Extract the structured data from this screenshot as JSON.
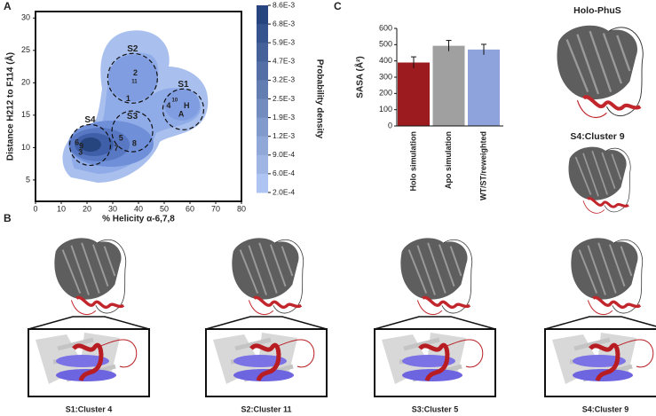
{
  "panel_labels": [
    "A",
    "B",
    "C"
  ],
  "chart_data": [
    {
      "type": "contour",
      "xlabel": "% Helicity α-6,7,8",
      "ylabel": "Distance H212 to F114 (Å)",
      "xlim": [
        0,
        80
      ],
      "xticks": [
        0,
        10,
        20,
        30,
        40,
        50,
        60,
        70,
        80
      ],
      "ylim": [
        1.7,
        31
      ],
      "yticks": [
        5,
        10,
        15,
        20,
        25,
        30
      ],
      "colorbar": {
        "label": "Probability density",
        "ticks": [
          {
            "value": 0.0086,
            "label": "8.6E-3"
          },
          {
            "value": 0.0068,
            "label": "6.8E-3"
          },
          {
            "value": 0.0059,
            "label": "5.9E-3"
          },
          {
            "value": 0.0047,
            "label": "4.7E-3"
          },
          {
            "value": 0.0032,
            "label": "3.2E-3"
          },
          {
            "value": 0.0025,
            "label": "2.5E-3"
          },
          {
            "value": 0.0019,
            "label": "1.9E-3"
          },
          {
            "value": 0.0012,
            "label": "1.2E-3"
          },
          {
            "value": 0.0009,
            "label": "9.0E-4"
          },
          {
            "value": 0.0006,
            "label": "6.0E-4"
          },
          {
            "value": 0.0002,
            "label": "2.0E-4"
          }
        ]
      },
      "regions": [
        {
          "label": "S1",
          "x": 57.4,
          "y": 15.9
        },
        {
          "label": "S2",
          "x": 37.7,
          "y": 20.7
        },
        {
          "label": "S3",
          "x": 37.6,
          "y": 12.5
        },
        {
          "label": "S4",
          "x": 21.2,
          "y": 10.4
        }
      ],
      "annotations": [
        {
          "text": "2",
          "x": 38.8,
          "y": 21.5,
          "color": "#d7191c"
        },
        {
          "text": "11",
          "x": 38.4,
          "y": 20.2,
          "color": "#d7191c"
        },
        {
          "text": "1",
          "x": 36,
          "y": 17.5,
          "color": "#d7191c"
        },
        {
          "text": "10",
          "x": 54.1,
          "y": 17.3,
          "color": "#2e8b2e"
        },
        {
          "text": "4",
          "x": 51.7,
          "y": 16.4,
          "color": "#2e8b2e"
        },
        {
          "text": "H",
          "x": 58.7,
          "y": 16.4,
          "color": "#8a5fb0"
        },
        {
          "text": "A",
          "x": 56.6,
          "y": 15.1,
          "color": "#8a5fb0"
        },
        {
          "text": "6",
          "x": 16.1,
          "y": 10.7,
          "color": "#111111"
        },
        {
          "text": "9",
          "x": 17.8,
          "y": 10.2,
          "color": "#111111"
        },
        {
          "text": "3",
          "x": 17.5,
          "y": 9.2,
          "color": "#111111"
        },
        {
          "text": "5",
          "x": 33.2,
          "y": 11.4,
          "color": "#7b2fa8"
        },
        {
          "text": "7",
          "x": 31.4,
          "y": 9.8,
          "color": "#1f2fd0"
        },
        {
          "text": "8",
          "x": 38.4,
          "y": 10.6,
          "color": "#1f2fd0"
        }
      ]
    },
    {
      "type": "bar",
      "ylabel": "SASA (Å²)",
      "categories": [
        "Holo simulation",
        "Apo simulation",
        "WT/ST/reweighted"
      ],
      "values": [
        390,
        493,
        470
      ],
      "errors": [
        35,
        33,
        32
      ],
      "colors": [
        "#9b1b1f",
        "#a0a0a0",
        "#8ea3db"
      ],
      "ylim": [
        0,
        600
      ],
      "yticks": [
        0,
        100,
        200,
        300,
        400,
        500,
        600
      ]
    }
  ],
  "structures": {
    "titles": [
      "Holo-PhuS",
      "S4:Cluster 9"
    ],
    "captions": [
      "S1:Cluster 4",
      "S2:Cluster 11",
      "S3:Cluster 5",
      "S4:Cluster 9"
    ]
  }
}
